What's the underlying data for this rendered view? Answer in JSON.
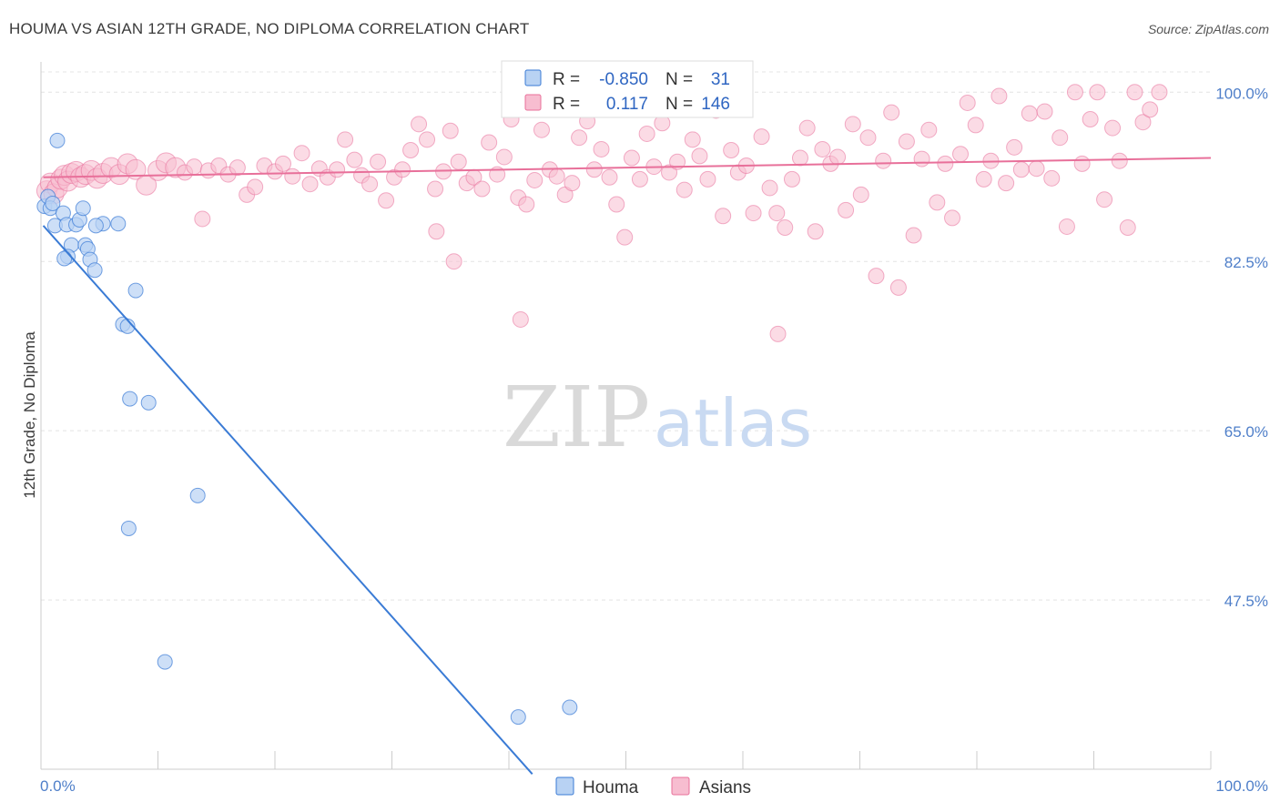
{
  "title": "HOUMA VS ASIAN 12TH GRADE, NO DIPLOMA CORRELATION CHART",
  "source": "Source: ZipAtlas.com",
  "watermark": {
    "zip": "ZIP",
    "atlas": "atlas"
  },
  "colors": {
    "houma": "#3a7bd5",
    "houma_fill": "#b8d2f3",
    "asians": "#e8709a",
    "asians_fill": "#f7bdd0",
    "tick_label": "#4f7fc9",
    "grid": "#e4e4e4"
  },
  "stats_legend": {
    "rows": [
      {
        "series": "houma",
        "r_label": "R =",
        "r_value": "-0.850",
        "n_label": "N =",
        "n_value": "31"
      },
      {
        "series": "asians",
        "r_label": "R =",
        "r_value": "0.117",
        "n_label": "N =",
        "n_value": "146"
      }
    ]
  },
  "chart_data": {
    "type": "scatter",
    "title": "HOUMA VS ASIAN 12TH GRADE, NO DIPLOMA CORRELATION CHART",
    "xlabel": "",
    "ylabel": "12th Grade, No Diploma",
    "xlim": [
      0,
      100
    ],
    "ylim": [
      30,
      102
    ],
    "x_tick_labels": [
      "0.0%",
      "100.0%"
    ],
    "y_ticks": [
      47.5,
      65.0,
      82.5,
      100.0
    ],
    "y_tick_labels": [
      "47.5%",
      "65.0%",
      "82.5%",
      "100.0%"
    ],
    "grid": true,
    "legend_placement": "bottom-center",
    "series": [
      {
        "name": "Houma",
        "color": "#3a7bd5",
        "trendline": [
          [
            0.2,
            86.2
          ],
          [
            42,
            29.5
          ]
        ],
        "points": [
          [
            0.3,
            88.2
          ],
          [
            0.6,
            89.2
          ],
          [
            0.8,
            88.0
          ],
          [
            1.0,
            88.5
          ],
          [
            1.4,
            95.0
          ],
          [
            1.2,
            86.2
          ],
          [
            1.9,
            87.5
          ],
          [
            2.2,
            86.3
          ],
          [
            2.6,
            84.2
          ],
          [
            2.3,
            83.0
          ],
          [
            2.0,
            82.8
          ],
          [
            3.0,
            86.3
          ],
          [
            3.3,
            86.8
          ],
          [
            3.6,
            88.0
          ],
          [
            3.8,
            84.2
          ],
          [
            4.0,
            83.8
          ],
          [
            4.2,
            82.7
          ],
          [
            4.6,
            81.6
          ],
          [
            5.3,
            86.4
          ],
          [
            6.6,
            86.4
          ],
          [
            4.7,
            86.2
          ],
          [
            7.0,
            76.0
          ],
          [
            7.4,
            75.8
          ],
          [
            8.1,
            79.5
          ],
          [
            7.6,
            68.3
          ],
          [
            9.2,
            67.9
          ],
          [
            13.4,
            58.3
          ],
          [
            7.5,
            54.9
          ],
          [
            10.6,
            41.1
          ],
          [
            40.8,
            35.4
          ],
          [
            45.2,
            36.4
          ]
        ]
      },
      {
        "name": "Asians",
        "color": "#e8709a",
        "trendline": [
          [
            0.2,
            91.2
          ],
          [
            100,
            93.2
          ]
        ],
        "points": [
          [
            0.5,
            89.8
          ],
          [
            0.8,
            90.6
          ],
          [
            1.1,
            89.5
          ],
          [
            1.4,
            90.1
          ],
          [
            1.7,
            91.0
          ],
          [
            2.0,
            91.4
          ],
          [
            2.3,
            90.8
          ],
          [
            2.6,
            91.6
          ],
          [
            3.0,
            91.8
          ],
          [
            3.4,
            91.2
          ],
          [
            3.8,
            91.5
          ],
          [
            4.3,
            91.9
          ],
          [
            4.8,
            91.1
          ],
          [
            5.3,
            91.6
          ],
          [
            6.0,
            92.2
          ],
          [
            6.7,
            91.5
          ],
          [
            7.4,
            92.6
          ],
          [
            8.1,
            92.0
          ],
          [
            9.0,
            90.4
          ],
          [
            10.0,
            91.9
          ],
          [
            10.7,
            92.7
          ],
          [
            11.5,
            92.2
          ],
          [
            12.3,
            91.7
          ],
          [
            13.1,
            92.3
          ],
          [
            13.8,
            86.9
          ],
          [
            14.3,
            91.9
          ],
          [
            15.2,
            92.4
          ],
          [
            16.0,
            91.5
          ],
          [
            16.8,
            92.2
          ],
          [
            17.6,
            89.4
          ],
          [
            18.3,
            90.2
          ],
          [
            19.1,
            92.4
          ],
          [
            20.0,
            91.8
          ],
          [
            20.7,
            92.6
          ],
          [
            21.5,
            91.3
          ],
          [
            22.3,
            93.7
          ],
          [
            23.0,
            90.5
          ],
          [
            23.8,
            92.1
          ],
          [
            24.5,
            91.2
          ],
          [
            25.3,
            92.0
          ],
          [
            26.0,
            95.1
          ],
          [
            26.8,
            93.0
          ],
          [
            27.4,
            91.4
          ],
          [
            28.1,
            90.5
          ],
          [
            28.8,
            92.8
          ],
          [
            29.5,
            88.8
          ],
          [
            30.2,
            91.2
          ],
          [
            30.9,
            92.0
          ],
          [
            31.6,
            94.0
          ],
          [
            32.3,
            96.7
          ],
          [
            33.0,
            95.1
          ],
          [
            33.7,
            90.0
          ],
          [
            34.4,
            91.8
          ],
          [
            35.0,
            96.0
          ],
          [
            35.7,
            92.8
          ],
          [
            36.4,
            90.6
          ],
          [
            37.0,
            91.2
          ],
          [
            37.7,
            90.0
          ],
          [
            38.3,
            94.8
          ],
          [
            39.0,
            91.5
          ],
          [
            39.6,
            93.3
          ],
          [
            40.2,
            97.2
          ],
          [
            40.8,
            89.1
          ],
          [
            41.5,
            88.4
          ],
          [
            42.2,
            90.9
          ],
          [
            42.8,
            96.1
          ],
          [
            43.5,
            92.0
          ],
          [
            44.1,
            91.3
          ],
          [
            44.8,
            89.4
          ],
          [
            45.4,
            90.6
          ],
          [
            46.0,
            95.3
          ],
          [
            46.7,
            97.0
          ],
          [
            47.3,
            92.0
          ],
          [
            47.9,
            94.1
          ],
          [
            48.6,
            91.2
          ],
          [
            49.2,
            88.4
          ],
          [
            49.9,
            85.0
          ],
          [
            50.5,
            93.2
          ],
          [
            51.2,
            91.0
          ],
          [
            51.8,
            95.7
          ],
          [
            52.4,
            92.3
          ],
          [
            53.1,
            96.8
          ],
          [
            53.7,
            91.7
          ],
          [
            54.4,
            92.8
          ],
          [
            55.0,
            89.9
          ],
          [
            55.7,
            95.1
          ],
          [
            56.3,
            93.4
          ],
          [
            57.0,
            91.0
          ],
          [
            57.7,
            98.1
          ],
          [
            58.3,
            87.2
          ],
          [
            59.0,
            94.0
          ],
          [
            59.6,
            91.7
          ],
          [
            60.3,
            92.4
          ],
          [
            60.9,
            87.5
          ],
          [
            61.6,
            95.4
          ],
          [
            62.3,
            90.1
          ],
          [
            62.9,
            87.5
          ],
          [
            63.6,
            86.0
          ],
          [
            64.2,
            91.0
          ],
          [
            64.9,
            93.2
          ],
          [
            65.5,
            96.3
          ],
          [
            66.2,
            85.6
          ],
          [
            66.8,
            94.1
          ],
          [
            67.5,
            92.6
          ],
          [
            68.1,
            93.3
          ],
          [
            68.8,
            87.8
          ],
          [
            69.4,
            96.7
          ],
          [
            70.1,
            89.4
          ],
          [
            70.7,
            95.3
          ],
          [
            71.4,
            81.0
          ],
          [
            72.0,
            92.9
          ],
          [
            72.7,
            97.9
          ],
          [
            73.3,
            79.8
          ],
          [
            74.0,
            94.9
          ],
          [
            74.6,
            85.2
          ],
          [
            75.3,
            93.1
          ],
          [
            75.9,
            96.1
          ],
          [
            76.6,
            88.6
          ],
          [
            77.3,
            92.6
          ],
          [
            77.9,
            87.0
          ],
          [
            78.6,
            93.6
          ],
          [
            79.2,
            98.9
          ],
          [
            79.9,
            96.6
          ],
          [
            80.6,
            91.0
          ],
          [
            81.2,
            92.9
          ],
          [
            81.9,
            99.6
          ],
          [
            82.5,
            90.6
          ],
          [
            83.2,
            94.3
          ],
          [
            83.8,
            92.0
          ],
          [
            84.5,
            97.8
          ],
          [
            85.1,
            92.1
          ],
          [
            85.8,
            98.0
          ],
          [
            86.4,
            91.1
          ],
          [
            87.1,
            95.3
          ],
          [
            87.7,
            86.1
          ],
          [
            88.4,
            100.0
          ],
          [
            89.0,
            92.6
          ],
          [
            89.7,
            97.2
          ],
          [
            90.3,
            100.0
          ],
          [
            90.9,
            88.9
          ],
          [
            91.6,
            96.3
          ],
          [
            92.2,
            92.9
          ],
          [
            92.9,
            86.0
          ],
          [
            93.5,
            100.0
          ],
          [
            94.2,
            96.9
          ],
          [
            94.8,
            98.2
          ],
          [
            33.8,
            85.6
          ],
          [
            35.3,
            82.5
          ],
          [
            41.0,
            76.5
          ],
          [
            63.0,
            75.0
          ],
          [
            95.6,
            100.0
          ]
        ]
      }
    ]
  },
  "bottom_legend": [
    {
      "series": "houma",
      "label": "Houma"
    },
    {
      "series": "asians",
      "label": "Asians"
    }
  ]
}
